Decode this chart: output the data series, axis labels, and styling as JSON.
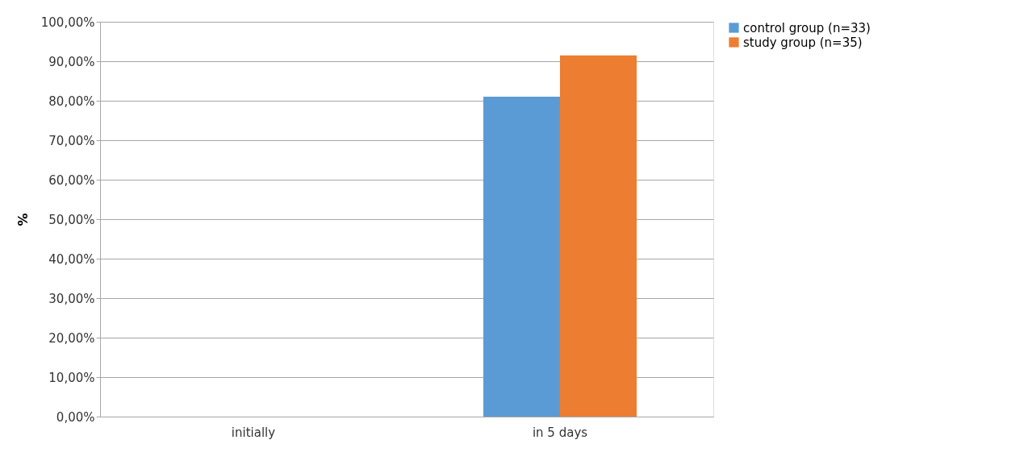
{
  "chart_data": {
    "type": "bar",
    "ylabel": "%",
    "categories": [
      "initially",
      "in 5 days"
    ],
    "series": [
      {
        "name": "control group (n=33)",
        "color": "#5b9bd5",
        "values": [
          0,
          81.0
        ]
      },
      {
        "name": "study group (n=35)",
        "color": "#ed7d31",
        "values": [
          0,
          91.5
        ]
      }
    ],
    "ylim": [
      0,
      100
    ],
    "yticks": [
      {
        "value": 0,
        "label": "0,00%"
      },
      {
        "value": 10,
        "label": "10,00%"
      },
      {
        "value": 20,
        "label": "20,00%"
      },
      {
        "value": 30,
        "label": "30,00%"
      },
      {
        "value": 40,
        "label": "40,00%"
      },
      {
        "value": 50,
        "label": "50,00%"
      },
      {
        "value": 60,
        "label": "60,00%"
      },
      {
        "value": 70,
        "label": "70,00%"
      },
      {
        "value": 80,
        "label": "80,00%"
      },
      {
        "value": 90,
        "label": "90,00%"
      },
      {
        "value": 100,
        "label": "100,00%"
      }
    ],
    "grid": "y",
    "legend": "right"
  }
}
